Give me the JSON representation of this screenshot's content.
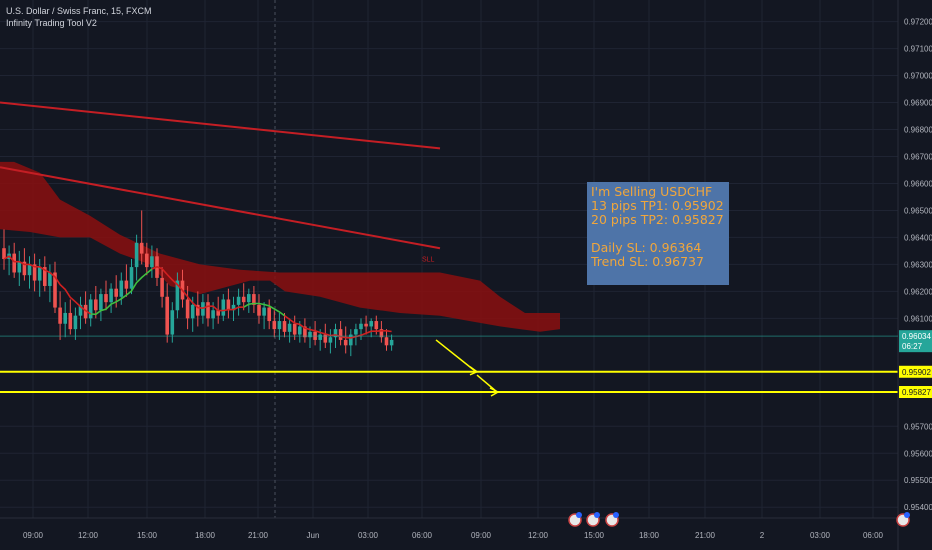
{
  "header": {
    "symbol_line": "U.S. Dollar / Swiss Franc, 15, FXCM",
    "indicator": "Infinity Trading Tool V2"
  },
  "info_box": {
    "line1": "I'm Selling USDCHF",
    "line2": "13 pips TP1: 0.95902",
    "line3": "20 pips TP2: 0.95827",
    "line4": "",
    "line5": "Daily SL: 0.96364",
    "line6": "Trend SL: 0.96737"
  },
  "sl_label": "SLL",
  "colors": {
    "background": "#131722",
    "grid": "#1f2433",
    "up": "#26a69a",
    "down": "#ef5350",
    "cloud": "#8b0f0f",
    "trend_line": "#c41e24",
    "ma_red": "#d02020",
    "ma_green": "#3fbf3f",
    "target": "#ffff00",
    "price_tag": "#26a69a",
    "text": "#b2b5be"
  },
  "chart_data": {
    "type": "candlestick",
    "instrument": "USDCHF",
    "interval": "15",
    "ylim": [
      0.9536,
      0.9728
    ],
    "y_ticks": [
      "0.97200",
      "0.97100",
      "0.97000",
      "0.96900",
      "0.96800",
      "0.96700",
      "0.96600",
      "0.96500",
      "0.96400",
      "0.96300",
      "0.96200",
      "0.96100",
      "0.95700",
      "0.95600",
      "0.95500",
      "0.95400"
    ],
    "x_ticks": [
      "09:00",
      "12:00",
      "15:00",
      "18:00",
      "21:00",
      "Jun",
      "03:00",
      "06:00",
      "09:00",
      "12:00",
      "15:00",
      "18:00",
      "21:00",
      "2",
      "03:00",
      "06:00"
    ],
    "current_price": "0.96034",
    "countdown": "06:27",
    "targets": [
      {
        "name": "TP1",
        "price": 0.95902,
        "label": "0.95902"
      },
      {
        "name": "TP2",
        "price": 0.95827,
        "label": "0.95827"
      }
    ],
    "candles_start": [
      {
        "o": 0.9636,
        "h": 0.9643,
        "l": 0.9628,
        "c": 0.9632
      },
      {
        "o": 0.9632,
        "h": 0.9637,
        "l": 0.9626,
        "c": 0.9634
      },
      {
        "o": 0.9634,
        "h": 0.9638,
        "l": 0.9625,
        "c": 0.9627
      },
      {
        "o": 0.9627,
        "h": 0.9635,
        "l": 0.9622,
        "c": 0.9631
      },
      {
        "o": 0.9631,
        "h": 0.9636,
        "l": 0.9624,
        "c": 0.9626
      },
      {
        "o": 0.9626,
        "h": 0.9633,
        "l": 0.9621,
        "c": 0.963
      },
      {
        "o": 0.963,
        "h": 0.9634,
        "l": 0.962,
        "c": 0.9624
      },
      {
        "o": 0.9624,
        "h": 0.9632,
        "l": 0.9618,
        "c": 0.9629
      },
      {
        "o": 0.9629,
        "h": 0.9633,
        "l": 0.962,
        "c": 0.9622
      },
      {
        "o": 0.9622,
        "h": 0.963,
        "l": 0.9616,
        "c": 0.9627
      },
      {
        "o": 0.9627,
        "h": 0.9631,
        "l": 0.9612,
        "c": 0.9614
      },
      {
        "o": 0.9614,
        "h": 0.962,
        "l": 0.9602,
        "c": 0.9608
      },
      {
        "o": 0.9608,
        "h": 0.9616,
        "l": 0.9603,
        "c": 0.9612
      },
      {
        "o": 0.9612,
        "h": 0.9617,
        "l": 0.9604,
        "c": 0.9606
      },
      {
        "o": 0.9606,
        "h": 0.9614,
        "l": 0.9602,
        "c": 0.9611
      },
      {
        "o": 0.9611,
        "h": 0.9618,
        "l": 0.9606,
        "c": 0.9615
      },
      {
        "o": 0.9615,
        "h": 0.962,
        "l": 0.9608,
        "c": 0.961
      },
      {
        "o": 0.961,
        "h": 0.9619,
        "l": 0.9607,
        "c": 0.9617
      },
      {
        "o": 0.9617,
        "h": 0.9622,
        "l": 0.961,
        "c": 0.9613
      },
      {
        "o": 0.9613,
        "h": 0.9621,
        "l": 0.9609,
        "c": 0.9619
      },
      {
        "o": 0.9619,
        "h": 0.9624,
        "l": 0.9613,
        "c": 0.9616
      },
      {
        "o": 0.9616,
        "h": 0.9623,
        "l": 0.9612,
        "c": 0.9621
      },
      {
        "o": 0.9621,
        "h": 0.9626,
        "l": 0.9614,
        "c": 0.9618
      },
      {
        "o": 0.9618,
        "h": 0.9627,
        "l": 0.9615,
        "c": 0.9624
      },
      {
        "o": 0.9624,
        "h": 0.963,
        "l": 0.9618,
        "c": 0.9621
      },
      {
        "o": 0.9621,
        "h": 0.9632,
        "l": 0.9619,
        "c": 0.9629
      },
      {
        "o": 0.9629,
        "h": 0.9641,
        "l": 0.9624,
        "c": 0.9638
      },
      {
        "o": 0.9638,
        "h": 0.965,
        "l": 0.963,
        "c": 0.9634
      },
      {
        "o": 0.9634,
        "h": 0.9638,
        "l": 0.9626,
        "c": 0.9629
      },
      {
        "o": 0.9629,
        "h": 0.9637,
        "l": 0.9625,
        "c": 0.9633
      },
      {
        "o": 0.9633,
        "h": 0.9636,
        "l": 0.9622,
        "c": 0.9625
      },
      {
        "o": 0.9625,
        "h": 0.9629,
        "l": 0.9614,
        "c": 0.9618
      },
      {
        "o": 0.9618,
        "h": 0.9623,
        "l": 0.9601,
        "c": 0.9604
      },
      {
        "o": 0.9604,
        "h": 0.9616,
        "l": 0.9601,
        "c": 0.9613
      },
      {
        "o": 0.9613,
        "h": 0.9627,
        "l": 0.961,
        "c": 0.9624
      },
      {
        "o": 0.9624,
        "h": 0.9628,
        "l": 0.9614,
        "c": 0.9617
      },
      {
        "o": 0.9617,
        "h": 0.9622,
        "l": 0.9606,
        "c": 0.961
      },
      {
        "o": 0.961,
        "h": 0.9618,
        "l": 0.9605,
        "c": 0.9615
      },
      {
        "o": 0.9615,
        "h": 0.962,
        "l": 0.9607,
        "c": 0.9611
      },
      {
        "o": 0.9611,
        "h": 0.9619,
        "l": 0.9608,
        "c": 0.9616
      },
      {
        "o": 0.9616,
        "h": 0.9619,
        "l": 0.9607,
        "c": 0.961
      },
      {
        "o": 0.961,
        "h": 0.9616,
        "l": 0.9606,
        "c": 0.9613
      },
      {
        "o": 0.9613,
        "h": 0.9618,
        "l": 0.9608,
        "c": 0.9611
      },
      {
        "o": 0.9611,
        "h": 0.9619,
        "l": 0.9609,
        "c": 0.9617
      },
      {
        "o": 0.9617,
        "h": 0.9621,
        "l": 0.961,
        "c": 0.9613
      },
      {
        "o": 0.9613,
        "h": 0.9618,
        "l": 0.9609,
        "c": 0.9615
      },
      {
        "o": 0.9615,
        "h": 0.9621,
        "l": 0.9611,
        "c": 0.9618
      },
      {
        "o": 0.9618,
        "h": 0.9623,
        "l": 0.9613,
        "c": 0.9616
      },
      {
        "o": 0.9616,
        "h": 0.9621,
        "l": 0.9612,
        "c": 0.9619
      },
      {
        "o": 0.9619,
        "h": 0.9622,
        "l": 0.9612,
        "c": 0.9615
      },
      {
        "o": 0.9615,
        "h": 0.9619,
        "l": 0.9608,
        "c": 0.9611
      },
      {
        "o": 0.9611,
        "h": 0.9616,
        "l": 0.9606,
        "c": 0.9614
      },
      {
        "o": 0.9614,
        "h": 0.9617,
        "l": 0.9606,
        "c": 0.9609
      },
      {
        "o": 0.9609,
        "h": 0.9613,
        "l": 0.9603,
        "c": 0.9606
      },
      {
        "o": 0.9606,
        "h": 0.9612,
        "l": 0.9602,
        "c": 0.9609
      },
      {
        "o": 0.9609,
        "h": 0.9612,
        "l": 0.9603,
        "c": 0.9605
      },
      {
        "o": 0.9605,
        "h": 0.961,
        "l": 0.9601,
        "c": 0.9608
      },
      {
        "o": 0.9608,
        "h": 0.9611,
        "l": 0.9602,
        "c": 0.9604
      },
      {
        "o": 0.9604,
        "h": 0.9609,
        "l": 0.9601,
        "c": 0.9607
      },
      {
        "o": 0.9607,
        "h": 0.961,
        "l": 0.9601,
        "c": 0.9603
      },
      {
        "o": 0.9603,
        "h": 0.9607,
        "l": 0.9599,
        "c": 0.9605
      },
      {
        "o": 0.9605,
        "h": 0.9609,
        "l": 0.96,
        "c": 0.9602
      },
      {
        "o": 0.9602,
        "h": 0.9606,
        "l": 0.9598,
        "c": 0.9604
      },
      {
        "o": 0.9604,
        "h": 0.9608,
        "l": 0.9599,
        "c": 0.9601
      },
      {
        "o": 0.9601,
        "h": 0.9606,
        "l": 0.9597,
        "c": 0.9603
      },
      {
        "o": 0.9603,
        "h": 0.9608,
        "l": 0.9599,
        "c": 0.9606
      },
      {
        "o": 0.9606,
        "h": 0.9609,
        "l": 0.96,
        "c": 0.9602
      },
      {
        "o": 0.9602,
        "h": 0.9607,
        "l": 0.9597,
        "c": 0.96
      },
      {
        "o": 0.96,
        "h": 0.9606,
        "l": 0.9596,
        "c": 0.9604
      },
      {
        "o": 0.9604,
        "h": 0.9608,
        "l": 0.96,
        "c": 0.9606
      },
      {
        "o": 0.9606,
        "h": 0.961,
        "l": 0.9602,
        "c": 0.9608
      },
      {
        "o": 0.9608,
        "h": 0.9611,
        "l": 0.9604,
        "c": 0.9607
      },
      {
        "o": 0.9607,
        "h": 0.961,
        "l": 0.9603,
        "c": 0.9609
      },
      {
        "o": 0.9609,
        "h": 0.9611,
        "l": 0.9604,
        "c": 0.9606
      },
      {
        "o": 0.9606,
        "h": 0.9609,
        "l": 0.9601,
        "c": 0.9603
      },
      {
        "o": 0.9603,
        "h": 0.9606,
        "l": 0.9598,
        "c": 0.96
      },
      {
        "o": 0.96,
        "h": 0.9604,
        "l": 0.9598,
        "c": 0.9602
      }
    ]
  }
}
